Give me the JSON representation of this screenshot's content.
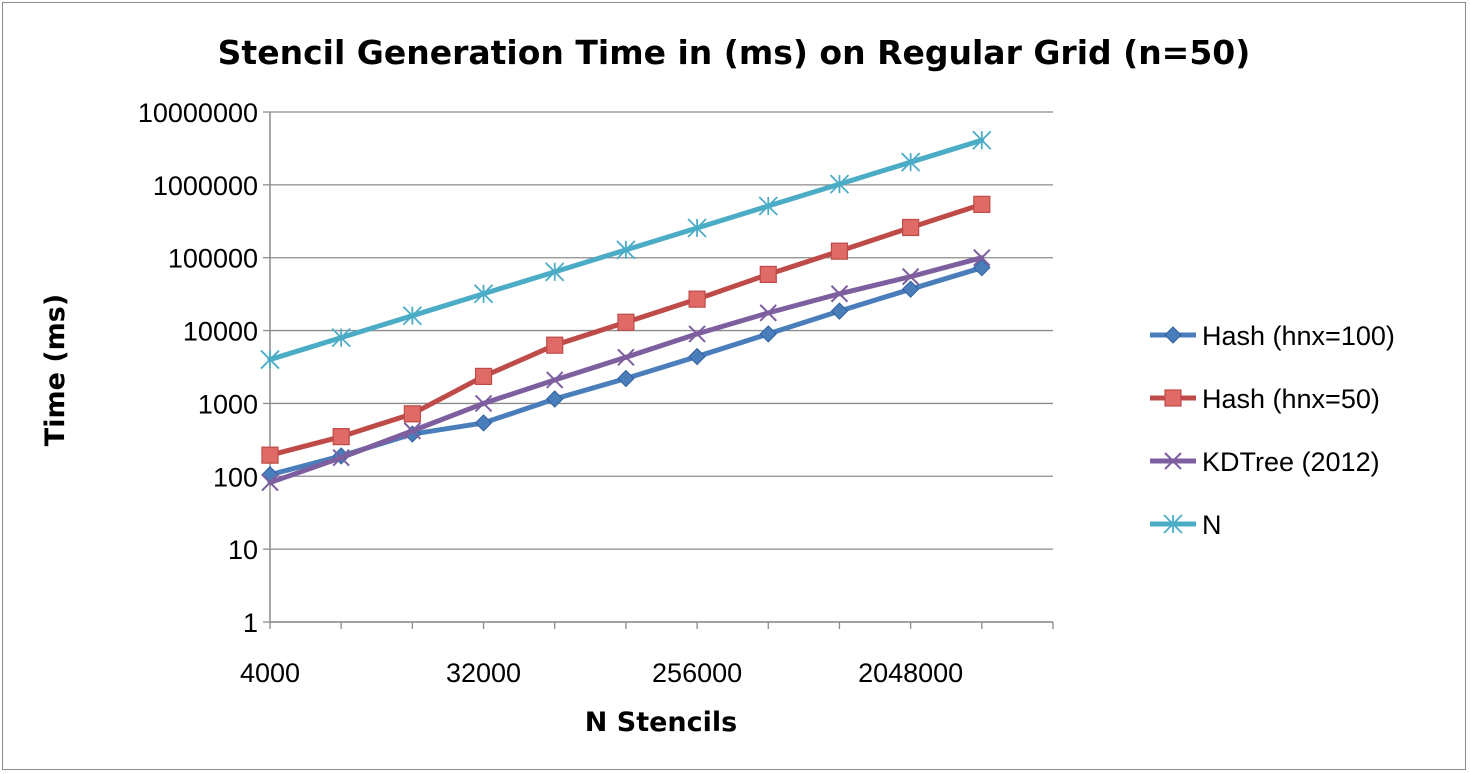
{
  "chart_data": {
    "type": "line",
    "title": "Stencil Generation Time in (ms) on Regular Grid (n=50)",
    "xlabel": "N Stencils",
    "ylabel": "Time (ms)",
    "x_scale": "log2",
    "y_scale": "log10",
    "ylim": [
      1,
      10000000
    ],
    "xlim": [
      4000,
      4096000
    ],
    "x_ticks": [
      4000,
      32000,
      256000,
      2048000
    ],
    "x_tick_labels": [
      "4000",
      "32000",
      "256000",
      "2048000"
    ],
    "y_ticks": [
      1,
      10,
      100,
      1000,
      10000,
      100000,
      1000000,
      10000000
    ],
    "y_tick_labels": [
      "1",
      "10",
      "100",
      "1000",
      "10000",
      "100000",
      "1000000",
      "10000000"
    ],
    "grid": true,
    "legend_position": "right",
    "x": [
      4000,
      8000,
      16000,
      32000,
      64000,
      128000,
      256000,
      512000,
      1024000,
      2048000,
      4096000
    ],
    "series": [
      {
        "name": "Hash (hnx=100)",
        "color": "#4a7ebb",
        "marker": "diamond",
        "values": [
          105,
          190,
          380,
          540,
          1150,
          2200,
          4400,
          9000,
          18500,
          37000,
          73000
        ]
      },
      {
        "name": "Hash (hnx=50)",
        "color": "#be4b48",
        "marker": "square",
        "values": [
          195,
          350,
          720,
          2350,
          6300,
          13000,
          27000,
          59000,
          123000,
          260000,
          540000
        ]
      },
      {
        "name": "KDTree (2012)",
        "color": "#7d5fa0",
        "marker": "x",
        "values": [
          82,
          180,
          420,
          1000,
          2100,
          4300,
          9000,
          17500,
          32000,
          55000,
          100000
        ]
      },
      {
        "name": "N",
        "color": "#4bacc6",
        "marker": "asterisk",
        "values": [
          4000,
          8000,
          16000,
          32000,
          64000,
          128000,
          256000,
          512000,
          1024000,
          2048000,
          4096000
        ]
      }
    ]
  }
}
